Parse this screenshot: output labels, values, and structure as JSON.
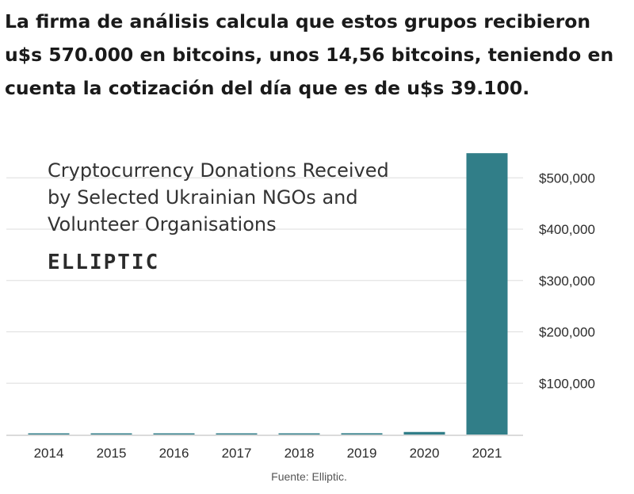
{
  "article": {
    "headline": "La firma de análisis calcula que estos grupos recibieron u$s 570.000 en bitcoins, unos 14,56 bitcoins, teniendo en cuenta la cotización del día que es de u$s 39.100.",
    "caption": "Fuente: Elliptic."
  },
  "chart_data": {
    "type": "bar",
    "title": "Cryptocurrency Donations Received by Selected Ukrainian NGOs and Volunteer Organisations",
    "title_lines": [
      "Cryptocurrency Donations Received",
      "by Selected Ukrainian NGOs and",
      "Volunteer Organisations"
    ],
    "brand": "ELLIPTIC",
    "categories": [
      "2014",
      "2015",
      "2016",
      "2017",
      "2018",
      "2019",
      "2020",
      "2021"
    ],
    "values": [
      1000,
      1000,
      1000,
      1500,
      1500,
      2500,
      5000,
      548000
    ],
    "y_ticks": [
      100000,
      200000,
      300000,
      400000,
      500000
    ],
    "y_tick_labels": [
      "$100,000",
      "$200,000",
      "$300,000",
      "$400,000",
      "$500,000"
    ],
    "ylim": [
      0,
      550000
    ],
    "y_axis_side": "right",
    "grid": true,
    "bar_color": "#317e88",
    "grid_color": "#dddddd"
  }
}
